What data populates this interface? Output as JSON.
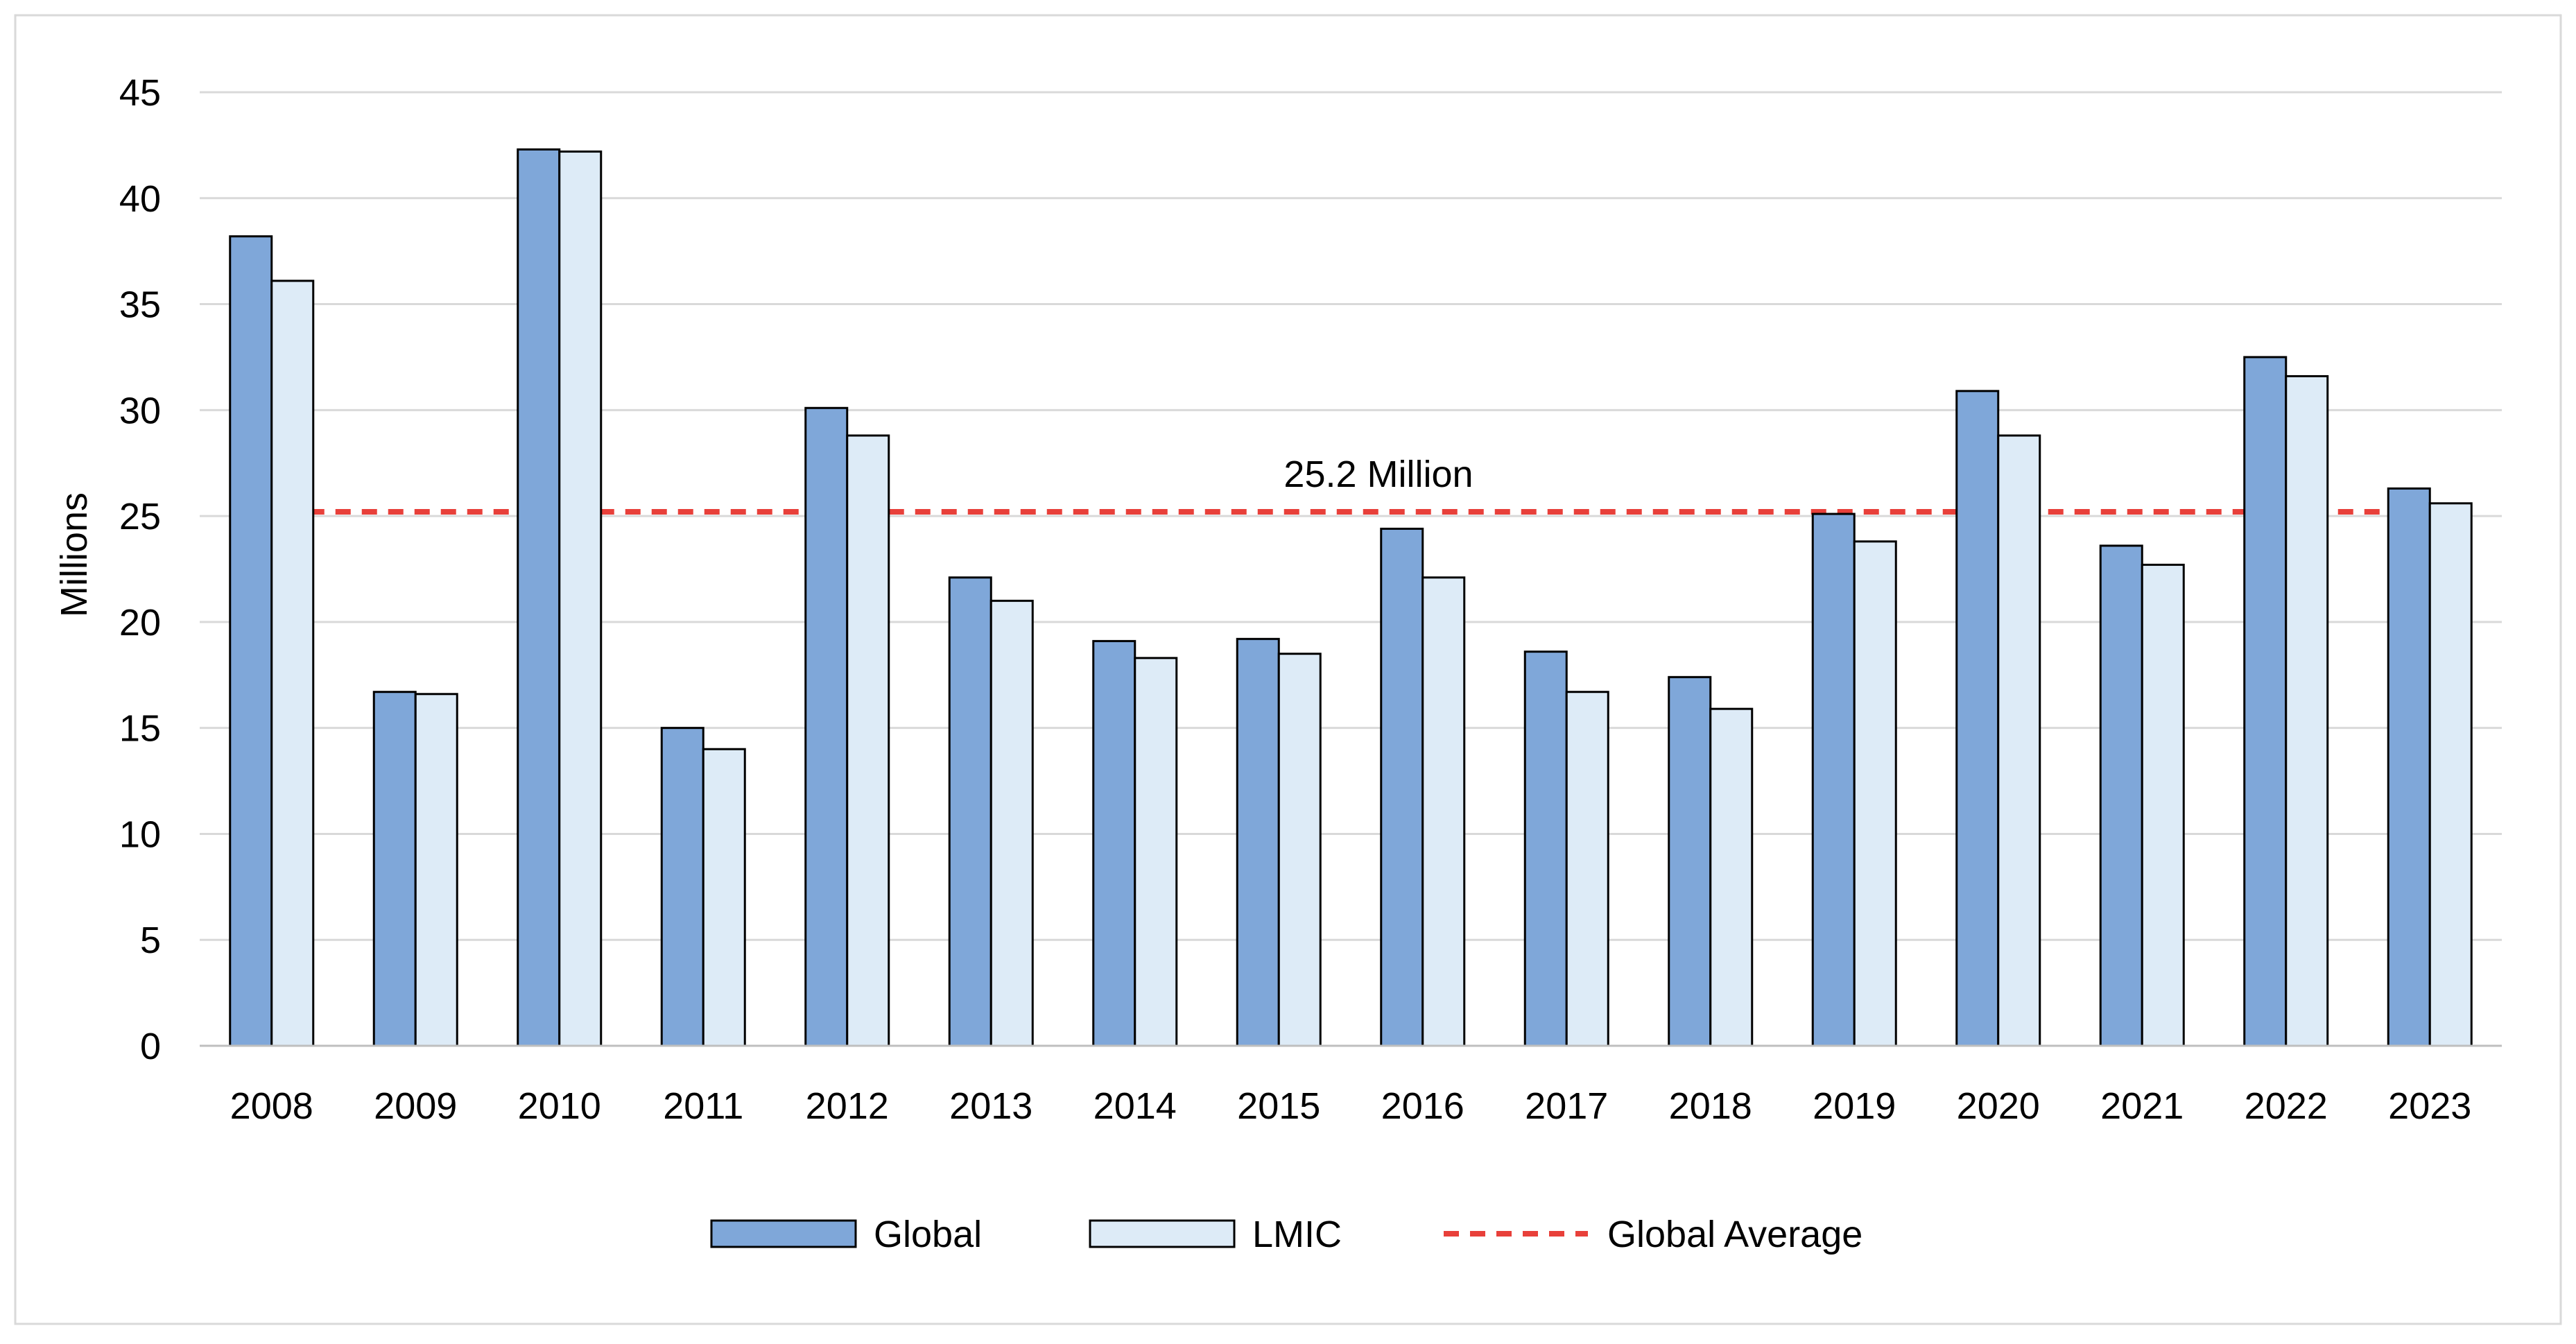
{
  "chart_data": {
    "type": "bar",
    "title": "",
    "xlabel": "",
    "ylabel": "Millions",
    "ylim": [
      0,
      45
    ],
    "yticks": [
      0,
      5,
      10,
      15,
      20,
      25,
      30,
      35,
      40,
      45
    ],
    "ytick_labels": [
      "0",
      "5",
      "10",
      "15",
      "20",
      "25",
      "30",
      "35",
      "40",
      "45"
    ],
    "grid": true,
    "legend_position": "bottom-center",
    "categories": [
      "2008",
      "2009",
      "2010",
      "2011",
      "2012",
      "2013",
      "2014",
      "2015",
      "2016",
      "2017",
      "2018",
      "2019",
      "2020",
      "2021",
      "2022",
      "2023"
    ],
    "series": [
      {
        "name": "Global",
        "color": "#7fa7d9",
        "values": [
          38.2,
          16.7,
          42.3,
          15.0,
          30.1,
          22.1,
          19.1,
          19.2,
          24.4,
          18.6,
          17.4,
          25.1,
          30.9,
          23.6,
          32.5,
          26.3
        ]
      },
      {
        "name": "LMIC",
        "color": "#ddebf7",
        "values": [
          36.1,
          16.6,
          42.2,
          14.0,
          28.8,
          21.0,
          18.3,
          18.5,
          22.1,
          16.7,
          15.9,
          23.8,
          28.8,
          22.7,
          31.6,
          25.6
        ]
      }
    ],
    "reference_line": {
      "name": "Global Average",
      "value": 25.2,
      "label": "25.2 Million",
      "color": "#e8403a",
      "style": "dashed"
    }
  }
}
